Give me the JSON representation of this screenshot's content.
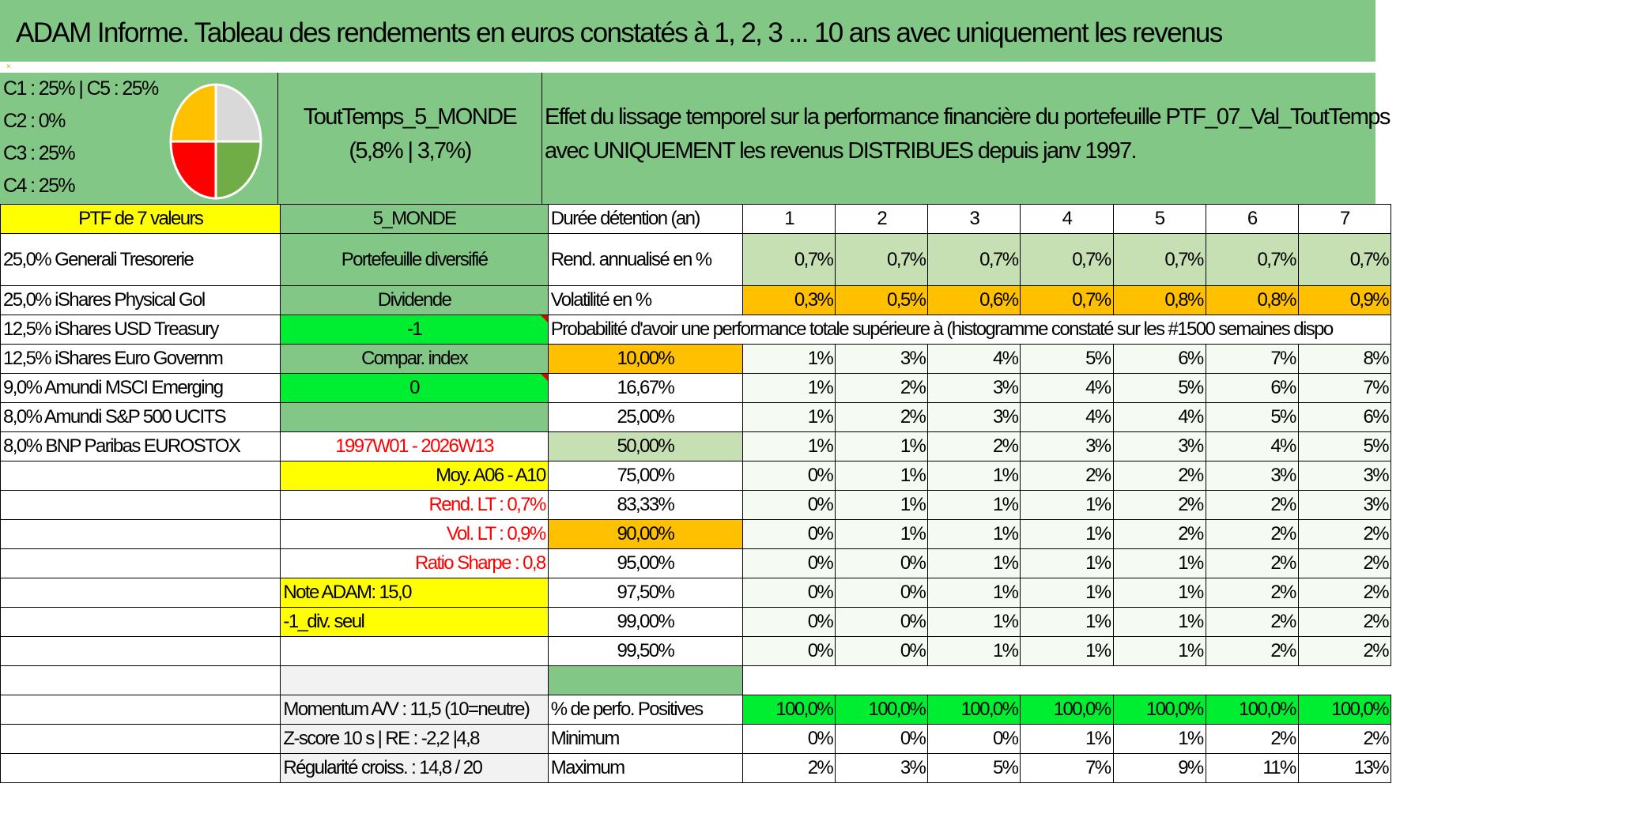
{
  "title": "ADAM Informe. Tableau des rendements en euros constatés à 1, 2, 3 ... 10 ans avec uniquement les revenus",
  "legend": {
    "lines": [
      "C1 : 25% | C5 : 25%",
      "C2 : 0%",
      "C3 : 25%",
      "C4 : 25%"
    ],
    "pie_colors": {
      "C1": "#ffc000",
      "C5": "#d9d9d9",
      "C3": "#ff0000",
      "C4": "#70ad47"
    }
  },
  "portfolio": {
    "name": "ToutTemps_5_MONDE",
    "returns": "(5,8% | 3,7%)",
    "description_line1": "Effet du lissage temporel sur la performance financière du portefeuille PTF_07_Val_ToutTemps",
    "description_line2": "avec UNIQUEMENT les revenus DISTRIBUES depuis janv 1997."
  },
  "header_row": {
    "ptf_label": "PTF de 7 valeurs",
    "zone": "5_MONDE",
    "duration_label": "Durée détention (an)",
    "years": [
      "1",
      "2",
      "3",
      "4",
      "5",
      "6",
      "7"
    ]
  },
  "holdings": [
    "25,0% Generali Tresorerie",
    "25,0% iShares Physical Gol",
    "12,5% iShares USD Treasury",
    "12,5% iShares Euro Governm",
    "9,0% Amundi MSCI Emerging",
    "8,0% Amundi S&P 500 UCITS",
    "8,0% BNP Paribas EUROSTOX"
  ],
  "middle_col": {
    "type": "Portefeuille diversifié",
    "dividend": "Dividende",
    "dividend_value": "-1",
    "compar": "Compar. index",
    "compar_value": "0",
    "period": "1997W01 - 2026W13",
    "moy": "Moy. A06 - A10",
    "rend_lt": "Rend. LT : 0,7%",
    "vol_lt": "Vol. LT : 0,9%",
    "sharpe": "Ratio Sharpe : 0,8",
    "note": "Note ADAM: 15,0",
    "div_seul": "-1_div. seul",
    "momentum": "Momentum A/V : 11,5 (10=neutre)",
    "zscore": "Z-score 10 s | RE : -2,2 |4,8",
    "regularite": "Régularité croiss. : 14,8 / 20"
  },
  "rend": {
    "label": "Rend. annualisé en %",
    "values": [
      "0,7%",
      "0,7%",
      "0,7%",
      "0,7%",
      "0,7%",
      "0,7%",
      "0,7%"
    ]
  },
  "vol": {
    "label": "Volatilité en %",
    "values": [
      "0,3%",
      "0,5%",
      "0,6%",
      "0,7%",
      "0,8%",
      "0,8%",
      "0,9%"
    ]
  },
  "proba_header": "Probabilité d'avoir une performance totale supérieure à (histogramme constaté sur les #1500 semaines dispo",
  "proba_rows": [
    {
      "p": "10,00%",
      "v": [
        "1%",
        "3%",
        "4%",
        "5%",
        "6%",
        "7%",
        "8%"
      ]
    },
    {
      "p": "16,67%",
      "v": [
        "1%",
        "2%",
        "3%",
        "4%",
        "5%",
        "6%",
        "7%"
      ]
    },
    {
      "p": "25,00%",
      "v": [
        "1%",
        "2%",
        "3%",
        "4%",
        "4%",
        "5%",
        "6%"
      ]
    },
    {
      "p": "50,00%",
      "v": [
        "1%",
        "1%",
        "2%",
        "3%",
        "3%",
        "4%",
        "5%"
      ]
    },
    {
      "p": "75,00%",
      "v": [
        "0%",
        "1%",
        "1%",
        "2%",
        "2%",
        "3%",
        "3%"
      ]
    },
    {
      "p": "83,33%",
      "v": [
        "0%",
        "1%",
        "1%",
        "1%",
        "2%",
        "2%",
        "3%"
      ]
    },
    {
      "p": "90,00%",
      "v": [
        "0%",
        "1%",
        "1%",
        "1%",
        "2%",
        "2%",
        "2%"
      ]
    },
    {
      "p": "95,00%",
      "v": [
        "0%",
        "0%",
        "1%",
        "1%",
        "1%",
        "2%",
        "2%"
      ]
    },
    {
      "p": "97,50%",
      "v": [
        "0%",
        "0%",
        "1%",
        "1%",
        "1%",
        "2%",
        "2%"
      ]
    },
    {
      "p": "99,00%",
      "v": [
        "0%",
        "0%",
        "1%",
        "1%",
        "1%",
        "2%",
        "2%"
      ]
    },
    {
      "p": "99,50%",
      "v": [
        "0%",
        "0%",
        "1%",
        "1%",
        "1%",
        "2%",
        "2%"
      ]
    }
  ],
  "positives": {
    "label": "% de perfo. Positives",
    "values": [
      "100,0%",
      "100,0%",
      "100,0%",
      "100,0%",
      "100,0%",
      "100,0%",
      "100,0%"
    ]
  },
  "minimum": {
    "label": "Minimum",
    "values": [
      "0%",
      "0%",
      "0%",
      "1%",
      "1%",
      "2%",
      "2%"
    ]
  },
  "maximum": {
    "label": "Maximum",
    "values": [
      "2%",
      "3%",
      "5%",
      "7%",
      "9%",
      "11%",
      "13%"
    ]
  }
}
